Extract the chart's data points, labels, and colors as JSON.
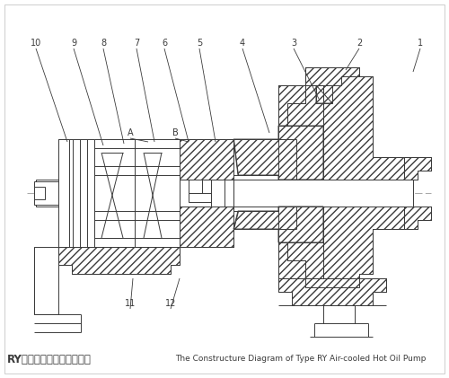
{
  "bg_color": "#ffffff",
  "line_color": "#3a3a3a",
  "fig_width": 5.0,
  "fig_height": 4.21,
  "dpi": 100,
  "title_cn": "RY型风冷式热油泵结构简图",
  "title_en": "The Constructure Diagram of Type RY Air-cooled Hot Oil Pump"
}
